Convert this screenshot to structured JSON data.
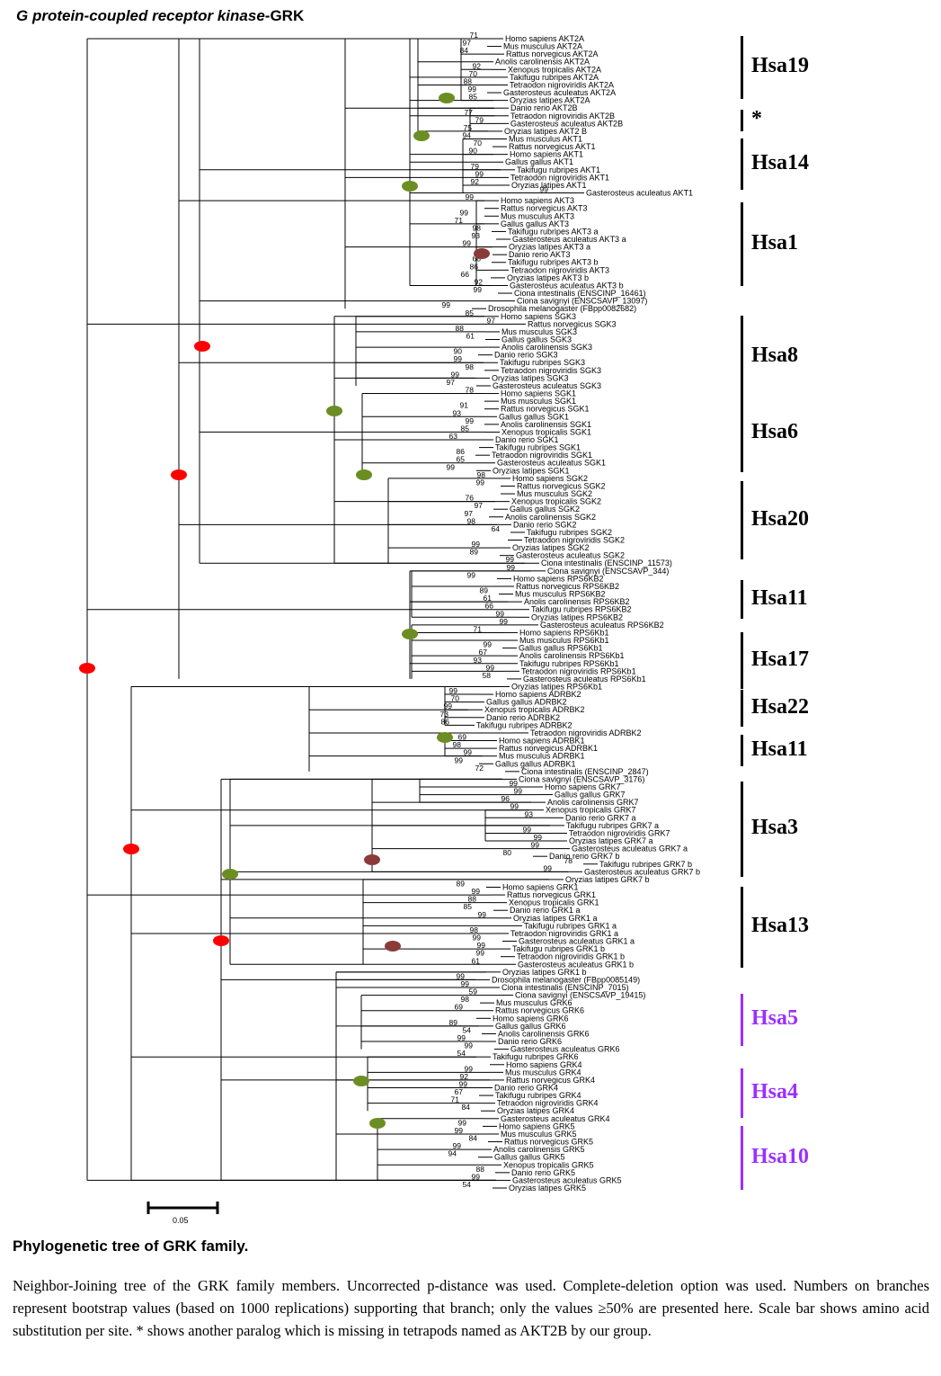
{
  "header": {
    "title_italic": "G protein-coupled receptor kinase-",
    "title_plain": "GRK"
  },
  "tree": {
    "leaves": [
      "Homo sapiens AKT2A",
      "Mus musculus AKT2A",
      "Rattus norvegicus AKT2A",
      "Anolis carolinensis AKT2A",
      "Xenopus tropicalis AKT2A",
      "Takifugu rubripes AKT2A",
      "Tetraodon nigroviridis AKT2A",
      "Gasterosteus aculeatus AKT2A",
      "Oryzias latipes AKT2A",
      "Danio rerio AKT2B",
      "Tetraodon nigroviridis AKT2B",
      "Gasterosteus aculeatus AKT2B",
      "Oryzias latipes AKT2 B",
      "Mus musculus AKT1",
      "Rattus norvegicus AKT1",
      "Homo sapiens AKT1",
      "Gallus gallus AKT1",
      "Takifugu rubripes AKT1",
      "Tetraodon nigroviridis AKT1",
      "Oryzias latipes AKT1",
      "Gasterosteus aculeatus AKT1",
      "Homo sapiens AKT3",
      "Rattus norvegicus AKT3",
      "Mus musculus AKT3",
      "Gallus gallus AKT3",
      "Takifugu rubripes AKT3 a",
      "Gasterosteus aculeatus AKT3 a",
      "Oryzias latipes AKT3 a",
      "Danio rerio AKT3",
      "Takifugu rubripes AKT3 b",
      "Tetraodon nigroviridis AKT3",
      "Oryzias latipes AKT3 b",
      "Gasterosteus aculeatus AKT3 b",
      "Ciona intestinalis (ENSCINP_16461)",
      "Ciona savignyi (ENSCSAVP_13097)",
      "Drosophila melanogaster (FBpp0082682)",
      "Homo sapiens SGK3",
      "Rattus norvegicus SGK3",
      "Mus musculus SGK3",
      "Gallus gallus SGK3",
      "Anolis carolinensis SGK3",
      "Danio rerio SGK3",
      "Takifugu rubripes SGK3",
      "Tetraodon nigroviridis SGK3",
      "Oryzias latipes SGK3",
      "Gasterosteus aculeatus SGK3",
      "Homo sapiens SGK1",
      "Mus musculus SGK1",
      "Rattus norvegicus SGK1",
      "Gallus gallus SGK1",
      "Anolis carolinensis SGK1",
      "Xenopus tropicalis SGK1",
      "Danio rerio SGK1",
      "Takifugu rubripes SGK1",
      "Tetraodon nigroviridis SGK1",
      "Gasterosteus aculeatus SGK1",
      "Oryzias latipes SGK1",
      "Homo sapiens SGK2",
      "Rattus norvegicus SGK2",
      "Mus musculus SGK2",
      "Xenopus tropicalis SGK2",
      "Gallus gallus SGK2",
      "Anolis carolinensis SGK2",
      "Danio rerio SGK2",
      "Takifugu rubripes SGK2",
      "Tetraodon nigroviridis SGK2",
      "Oryzias latipes SGK2",
      "Gasterosteus aculeatus SGK2",
      "Ciona intestinalis (ENSCINP_11573)",
      "Ciona savignyi (ENSCSAVP_344)",
      "Homo sapiens RPS6KB2",
      "Rattus norvegicus RPS6KB2",
      "Mus musculus RPS6KB2",
      "Anolis carolinensis RPS6KB2",
      "Takifugu rubripes RPS6KB2",
      "Oryzias latipes RPS6KB2",
      "Gasterosteus aculeatus RPS6KB2",
      "Homo sapiens RPS6Kb1",
      "Mus musculus RPS6Kb1",
      "Gallus gallus RPS6Kb1",
      "Anolis carolinensis RPS6Kb1",
      "Takifugu rubripes RPS6Kb1",
      "Tetraodon nigroviridis RPS6Kb1",
      "Gasterosteus aculeatus RPS6Kb1",
      "Oryzias latipes RPS6Kb1",
      "Homo sapiens ADRBK2",
      "Gallus gallus ADRBK2",
      "Xenopus tropicalis ADRBK2",
      "Danio rerio ADRBK2",
      "Takifugu rubripes ADRBK2",
      "Tetraodon nigroviridis ADRBK2",
      "Homo sapiens ADRBK1",
      "Rattus norvegicus ADRBK1",
      "Mus musculus ADRBK1",
      "Gallus gallus ADRBK1",
      "Ciona intestinalis (ENSCINP_2847)",
      "Ciona savignyi (ENSCSAVP_3176)",
      "Homo sapiens GRK7",
      "Gallus gallus GRK7",
      "Anolis carolinensis GRK7",
      "Xenopus tropicalis GRK7",
      "Danio rerio GRK7 a",
      "Takifugu rubripes GRK7 a",
      "Tetraodon nigroviridis GRK7",
      "Oryzias latipes GRK7 a",
      "Gasterosteus aculeatus GRK7 a",
      "Danio rerio GRK7 b",
      "Takifugu rubripes GRK7 b",
      "Gasterosteus aculeatus GRK7 b",
      "Oryzias latipes GRK7 b",
      "Homo sapiens GRK1",
      "Rattus norvegicus GRK1",
      "Xenopus tropicalis GRK1",
      "Danio rerio GRK1 a",
      "Oryzias latipes GRK1 a",
      "Takifugu rubripes GRK1 a",
      "Tetraodon nigroviridis GRK1 a",
      "Gasterosteus aculeatus GRK1 a",
      "Takifugu rubripes GRK1 b",
      "Tetraodon nigroviridis GRK1 b",
      "Gasterosteus aculeatus GRK1 b",
      "Oryzias latipes GRK1  b",
      "Drosophila melanogaster (FBpp0085149)",
      "Ciona intestinalis (ENSCINP_7015)",
      "Ciona savignyi (ENSCSAVP_19415)",
      "Mus musculus GRK6",
      "Rattus norvegicus GRK6",
      "Homo sapiens GRK6",
      "Gallus gallus GRK6",
      "Anolis carolinensis GRK6",
      "Danio rerio GRK6",
      "Gasterosteus aculeatus GRK6",
      "Takifugu rubripes GRK6",
      "Homo sapiens GRK4",
      "Mus musculus GRK4",
      "Rattus norvegicus GRK4",
      "Danio rerio GRK4",
      "Takifugu rubripes GRK4",
      "Tetraodon nigroviridis GRK4",
      "Oryzias latipes GRK4",
      "Gasterosteus aculeatus GRK4",
      "Homo sapiens GRK5",
      "Mus musculus GRK5",
      "Rattus norvegicus GRK5",
      "Anolis carolinensis GRK5",
      "Gallus gallus GRK5",
      "Xenopus tropicalis GRK5",
      "Danio rerio GRK5",
      "Gasterosteus aculeatus GRK5",
      "Oryzias latipes GRK5"
    ],
    "bootstrap": [
      "71",
      "97",
      "84",
      "92",
      "70",
      "88",
      "99",
      "85",
      "77",
      "79",
      "75",
      "94",
      "70",
      "90",
      "79",
      "99",
      "92",
      "99",
      "99",
      "99",
      "71",
      "98",
      "93",
      "99",
      "68",
      "86",
      "66",
      "92",
      "99",
      "99",
      "85",
      "97",
      "88",
      "61",
      "90",
      "99",
      "98",
      "99",
      "97",
      "78",
      "91",
      "93",
      "99",
      "85",
      "63",
      "86",
      "65",
      "99",
      "98",
      "99",
      "76",
      "97",
      "97",
      "98",
      "64",
      "99",
      "89",
      "99",
      "99",
      "99",
      "89",
      "61",
      "66",
      "99",
      "99",
      "71",
      "99",
      "67",
      "93",
      "99",
      "58",
      "99",
      "70",
      "99",
      "73",
      "86",
      "69",
      "98",
      "99",
      "99",
      "72",
      "99",
      "99",
      "96",
      "99",
      "93",
      "99",
      "99",
      "99",
      "80",
      "78",
      "99",
      "89",
      "99",
      "88",
      "85",
      "99",
      "98",
      "99",
      "99",
      "99",
      "61",
      "99",
      "99",
      "59",
      "98",
      "69",
      "89",
      "54",
      "99",
      "99",
      "54",
      "99",
      "92",
      "99",
      "67",
      "71",
      "84",
      "99",
      "99",
      "84",
      "99",
      "94",
      "88",
      "99",
      "54"
    ],
    "scale_label": "0.05"
  },
  "groups": [
    {
      "label": "Hsa19",
      "color": "#000000"
    },
    {
      "label": "*",
      "color": "#000000"
    },
    {
      "label": "Hsa14",
      "color": "#000000"
    },
    {
      "label": "Hsa1",
      "color": "#000000"
    },
    {
      "label": "Hsa8",
      "color": "#000000"
    },
    {
      "label": "Hsa6",
      "color": "#000000"
    },
    {
      "label": "Hsa20",
      "color": "#000000"
    },
    {
      "label": "Hsa11",
      "color": "#000000"
    },
    {
      "label": "Hsa17",
      "color": "#000000"
    },
    {
      "label": "Hsa22",
      "color": "#000000"
    },
    {
      "label": "Hsa11",
      "color": "#000000"
    },
    {
      "label": "Hsa3",
      "color": "#000000"
    },
    {
      "label": "Hsa13",
      "color": "#000000"
    },
    {
      "label": "Hsa5",
      "color": "#9b30ff"
    },
    {
      "label": "Hsa4",
      "color": "#9b30ff"
    },
    {
      "label": "Hsa10",
      "color": "#9b30ff"
    }
  ],
  "node_colors": {
    "red": "#ff0000",
    "green": "#6b8e23",
    "brown": "#8b3a3a"
  },
  "caption": {
    "title": "Phylogenetic tree of GRK family.",
    "text": "Neighbor-Joining tree of the  GRK family members. Uncorrected p-distance was used. Complete-deletion option was used. Numbers on branches represent bootstrap values (based on 1000 replications) supporting that branch; only the values ≥50% are presented here. Scale bar shows amino acid substitution per site. * shows another paralog which is missing in tetrapods named as AKT2B by our group."
  }
}
